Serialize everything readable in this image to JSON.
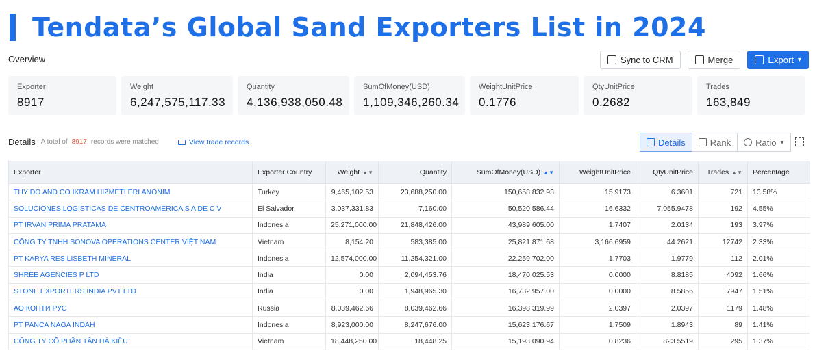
{
  "title": "Tendata’s Global Sand Exporters List in 2024",
  "overview_label": "Overview",
  "actions": {
    "sync": "Sync to CRM",
    "merge": "Merge",
    "export": "Export"
  },
  "stats": [
    {
      "label": "Exporter",
      "value": "8917"
    },
    {
      "label": "Weight",
      "value": "6,247,575,117.33"
    },
    {
      "label": "Quantity",
      "value": "4,136,938,050.48"
    },
    {
      "label": "SumOfMoney(USD)",
      "value": "1,109,346,260.34"
    },
    {
      "label": "WeightUnitPrice",
      "value": "0.1776"
    },
    {
      "label": "QtyUnitPrice",
      "value": "0.2682"
    },
    {
      "label": "Trades",
      "value": "163,849"
    }
  ],
  "details": {
    "label": "Details",
    "prefix": "A total of",
    "count": "8917",
    "suffix": "records were matched",
    "view_link": "View trade records"
  },
  "view_toggle": {
    "details": "Details",
    "rank": "Rank",
    "ratio": "Ratio"
  },
  "columns": [
    "Exporter",
    "Exporter Country",
    "Weight",
    "Quantity",
    "SumOfMoney(USD)",
    "WeightUnitPrice",
    "QtyUnitPrice",
    "Trades",
    "Percentage"
  ],
  "rows": [
    [
      "THY DO AND CO IKRAM HIZMETLERI ANONIM",
      "Turkey",
      "9,465,102.53",
      "23,688,250.00",
      "150,658,832.93",
      "15.9173",
      "6.3601",
      "721",
      "13.58%"
    ],
    [
      "SOLUCIONES LOGISTICAS DE CENTROAMERICA S A DE C V",
      "El Salvador",
      "3,037,331.83",
      "7,160.00",
      "50,520,586.44",
      "16.6332",
      "7,055.9478",
      "192",
      "4.55%"
    ],
    [
      "PT IRVAN PRIMA PRATAMA",
      "Indonesia",
      "25,271,000.00",
      "21,848,426.00",
      "43,989,605.00",
      "1.7407",
      "2.0134",
      "193",
      "3.97%"
    ],
    [
      "CÔNG TY TNHH SONOVA OPERATIONS CENTER VIỆT NAM",
      "Vietnam",
      "8,154.20",
      "583,385.00",
      "25,821,871.68",
      "3,166.6959",
      "44.2621",
      "12742",
      "2.33%"
    ],
    [
      "PT KARYA RES LISBETH MINERAL",
      "Indonesia",
      "12,574,000.00",
      "11,254,321.00",
      "22,259,702.00",
      "1.7703",
      "1.9779",
      "112",
      "2.01%"
    ],
    [
      "SHREE AGENCIES P LTD",
      "India",
      "0.00",
      "2,094,453.76",
      "18,470,025.53",
      "0.0000",
      "8.8185",
      "4092",
      "1.66%"
    ],
    [
      "STONE EXPORTERS INDIA PVT LTD",
      "India",
      "0.00",
      "1,948,965.30",
      "16,732,957.00",
      "0.0000",
      "8.5856",
      "7947",
      "1.51%"
    ],
    [
      "АО КОНТИ РУС",
      "Russia",
      "8,039,462.66",
      "8,039,462.66",
      "16,398,319.99",
      "2.0397",
      "2.0397",
      "1179",
      "1.48%"
    ],
    [
      "PT PANCA NAGA INDAH",
      "Indonesia",
      "8,923,000.00",
      "8,247,676.00",
      "15,623,176.67",
      "1.7509",
      "1.8943",
      "89",
      "1.41%"
    ],
    [
      "CÔNG TY CỔ PHẦN TÂN HÀ KIỀU",
      "Vietnam",
      "18,448,250.00",
      "18,448.25",
      "15,193,090.94",
      "0.8236",
      "823.5519",
      "295",
      "1.37%"
    ]
  ]
}
